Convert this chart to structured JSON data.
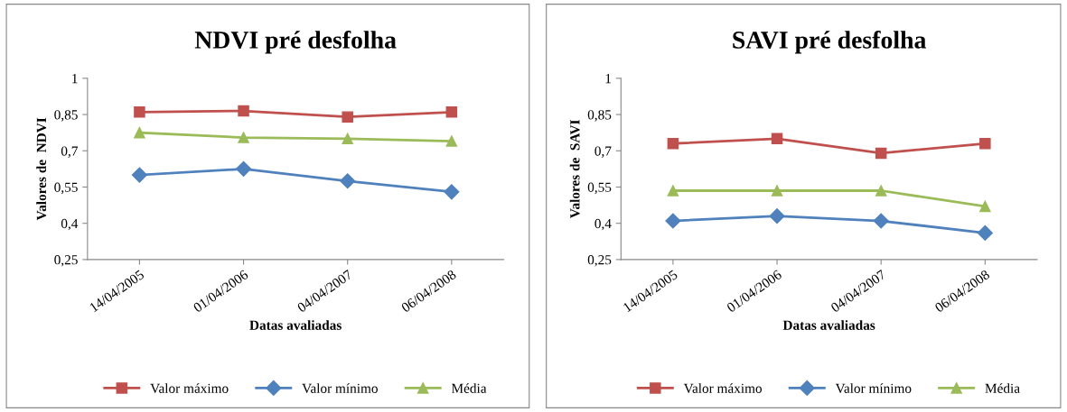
{
  "chart_data": [
    {
      "type": "line",
      "title": "NDVI pré desfolha",
      "xlabel": "Datas avaliadas",
      "ylabel": "Valores de  NDVI",
      "categories": [
        "14/04/2005",
        "01/04/2006",
        "04/04/2007",
        "06/04/2008"
      ],
      "ylim": [
        0.25,
        1
      ],
      "yticks": [
        {
          "value": 0.25,
          "label": "0,25"
        },
        {
          "value": 0.4,
          "label": "0,4"
        },
        {
          "value": 0.55,
          "label": "0,55"
        },
        {
          "value": 0.7,
          "label": "0,7"
        },
        {
          "value": 0.85,
          "label": "0,85"
        },
        {
          "value": 1,
          "label": "1"
        }
      ],
      "legend": "bottom",
      "grid": false,
      "series": [
        {
          "name": "Valor máximo",
          "color": "#c0504d",
          "marker": "square",
          "values": [
            0.86,
            0.865,
            0.84,
            0.86
          ]
        },
        {
          "name": "Valor mínimo",
          "color": "#4f81bd",
          "marker": "diamond",
          "values": [
            0.6,
            0.625,
            0.575,
            0.53
          ]
        },
        {
          "name": "Média",
          "color": "#9bbb59",
          "marker": "triangle",
          "values": [
            0.775,
            0.755,
            0.75,
            0.74
          ]
        }
      ]
    },
    {
      "type": "line",
      "title": "SAVI pré desfolha",
      "xlabel": "Datas avaliadas",
      "ylabel": "Valores de  SAVI",
      "categories": [
        "14/04/2005",
        "01/04/2006",
        "04/04/2007",
        "06/04/2008"
      ],
      "ylim": [
        0.25,
        1
      ],
      "yticks": [
        {
          "value": 0.25,
          "label": "0,25"
        },
        {
          "value": 0.4,
          "label": "0,4"
        },
        {
          "value": 0.55,
          "label": "0,55"
        },
        {
          "value": 0.7,
          "label": "0,7"
        },
        {
          "value": 0.85,
          "label": "0,85"
        },
        {
          "value": 1,
          "label": "1"
        }
      ],
      "legend": "bottom",
      "grid": false,
      "series": [
        {
          "name": "Valor máximo",
          "color": "#c0504d",
          "marker": "square",
          "values": [
            0.73,
            0.75,
            0.69,
            0.73
          ]
        },
        {
          "name": "Valor mínimo",
          "color": "#4f81bd",
          "marker": "diamond",
          "values": [
            0.41,
            0.43,
            0.41,
            0.36
          ]
        },
        {
          "name": "Média",
          "color": "#9bbb59",
          "marker": "triangle",
          "values": [
            0.535,
            0.535,
            0.535,
            0.47
          ]
        }
      ]
    }
  ]
}
